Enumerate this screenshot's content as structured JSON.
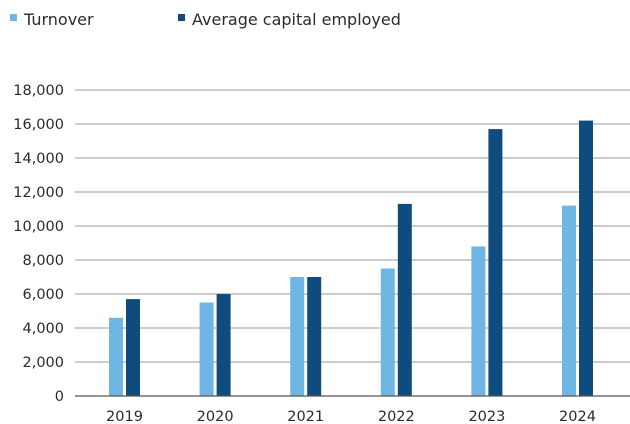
{
  "colors": {
    "turnover": "#6fb6e4",
    "capital": "#0f4c7d"
  },
  "chart_data": {
    "type": "bar",
    "categories": [
      "2019",
      "2020",
      "2021",
      "2022",
      "2023",
      "2024"
    ],
    "series": [
      {
        "name": "Turnover",
        "values": [
          4600,
          5500,
          7000,
          7500,
          8800,
          11200
        ]
      },
      {
        "name": "Average capital employed",
        "values": [
          5700,
          6000,
          7000,
          11300,
          15700,
          16200
        ]
      }
    ],
    "yticks": [
      "0",
      "2,000",
      "4,000",
      "6,000",
      "8,000",
      "10,000",
      "12,000",
      "14,000",
      "16,000",
      "18,000"
    ],
    "ylim": [
      0,
      18000
    ],
    "grid": true,
    "legend": "top-left"
  }
}
